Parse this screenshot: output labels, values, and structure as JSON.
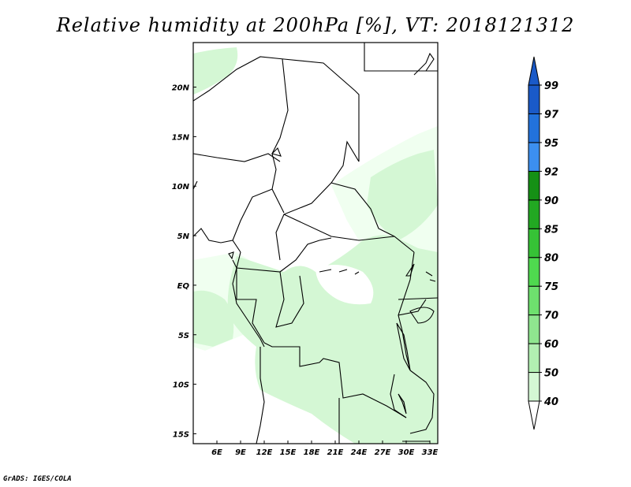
{
  "title": "Relative humidity at 200hPa [%], VT: 2018121312",
  "footer": "GrADS: IGES/COLA",
  "map": {
    "lon_range": [
      3,
      34
    ],
    "lat_range": [
      -16,
      24.5
    ],
    "x_ticks": [
      {
        "lon": 6,
        "label": "6E"
      },
      {
        "lon": 9,
        "label": "9E"
      },
      {
        "lon": 12,
        "label": "12E"
      },
      {
        "lon": 15,
        "label": "15E"
      },
      {
        "lon": 18,
        "label": "18E"
      },
      {
        "lon": 21,
        "label": "21E"
      },
      {
        "lon": 24,
        "label": "24E"
      },
      {
        "lon": 27,
        "label": "27E"
      },
      {
        "lon": 30,
        "label": "30E"
      },
      {
        "lon": 33,
        "label": "33E"
      }
    ],
    "y_ticks": [
      {
        "lat": 20,
        "label": "20N"
      },
      {
        "lat": 15,
        "label": "15N"
      },
      {
        "lat": 10,
        "label": "10N"
      },
      {
        "lat": 5,
        "label": "5N"
      },
      {
        "lat": 0,
        "label": "EQ"
      },
      {
        "lat": -5,
        "label": "5S"
      },
      {
        "lat": -10,
        "label": "10S"
      },
      {
        "lat": -15,
        "label": "15S"
      }
    ]
  },
  "colorbar": {
    "levels": [
      "40",
      "50",
      "60",
      "70",
      "75",
      "80",
      "85",
      "90",
      "92",
      "95",
      "97",
      "99"
    ],
    "colors": [
      "#f0fff0",
      "#d4f7d4",
      "#b2efb2",
      "#8fe68f",
      "#6ee06e",
      "#4fd94f",
      "#36c236",
      "#22a822",
      "#159015",
      "#3c8ff0",
      "#2272dc",
      "#1a5ac8"
    ],
    "under_color": "#ffffff",
    "over_color": "#1a5ac8"
  },
  "colors": {
    "light_green": "#d4f7d4",
    "pale_green": "#f0fff0",
    "border": "#000000"
  }
}
